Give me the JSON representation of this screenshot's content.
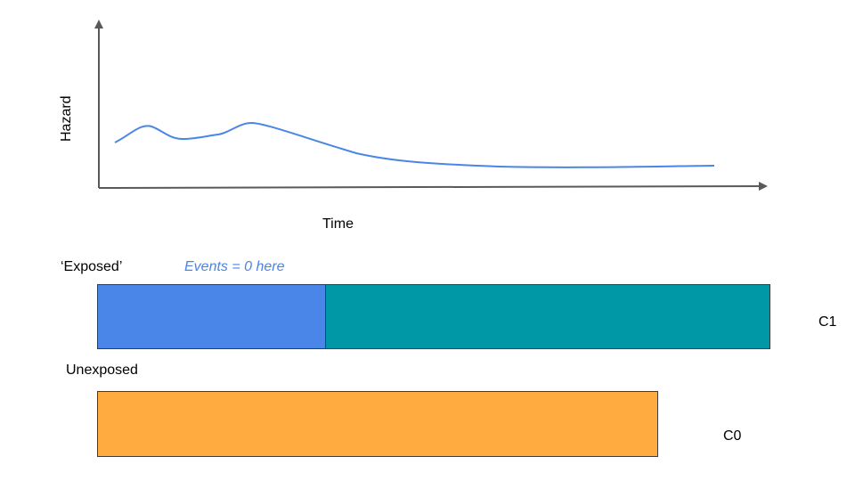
{
  "hazard_plot": {
    "y_label": "Hazard",
    "x_label": "Time",
    "curve_color": "#4a86e8"
  },
  "groups": {
    "exposed": {
      "label": "‘Exposed’",
      "note": "Events = 0 here",
      "note_color": "#4a86e8",
      "early_segment_color": "#4a86e8",
      "late_segment_color": "#0098a6",
      "cohort_label": "C1"
    },
    "unexposed": {
      "label": "Unexposed",
      "segment_color": "#ffab40",
      "cohort_label": "C0"
    }
  }
}
